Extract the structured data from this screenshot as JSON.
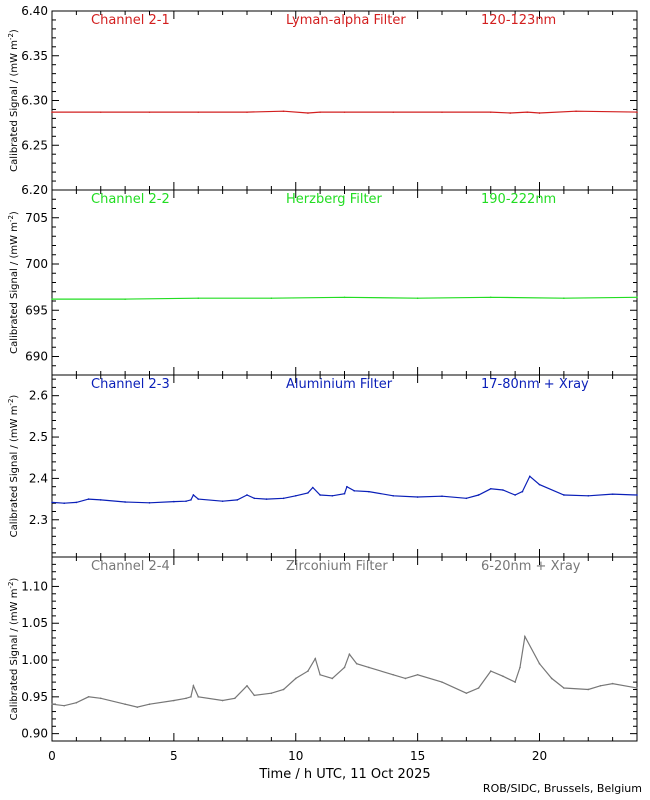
{
  "chart_data": [
    {
      "type": "line",
      "channel": "Channel 2-1",
      "filter": "Lyman-alpha Filter",
      "band": "120-123nm",
      "color": "#d21f1f",
      "ylabel": "Calibrated Signal / (mW m",
      "ylabel_sup": "-2",
      "ylabel_end": ")",
      "ylim": [
        6.2,
        6.4
      ],
      "yticks": [
        "6.20",
        "6.25",
        "6.30",
        "6.35",
        "6.40"
      ],
      "x": [
        0,
        2,
        4,
        6,
        8,
        9.5,
        10.5,
        11,
        12,
        14,
        16,
        18,
        18.8,
        19.5,
        20,
        21.5,
        24
      ],
      "values": [
        6.287,
        6.287,
        6.287,
        6.287,
        6.287,
        6.288,
        6.286,
        6.287,
        6.287,
        6.287,
        6.287,
        6.287,
        6.286,
        6.287,
        6.286,
        6.288,
        6.287
      ]
    },
    {
      "type": "line",
      "channel": "Channel 2-2",
      "filter": "Herzberg Filter",
      "band": "190-222nm",
      "color": "#22dd22",
      "ylabel": "Calibrated Signal / (mW m",
      "ylabel_sup": "-2",
      "ylabel_end": ")",
      "ylim": [
        688,
        708
      ],
      "yticks": [
        "690",
        "695",
        "700",
        "705"
      ],
      "x": [
        0,
        3,
        6,
        9,
        12,
        15,
        18,
        21,
        24
      ],
      "values": [
        696.2,
        696.2,
        696.3,
        696.3,
        696.4,
        696.3,
        696.4,
        696.3,
        696.4
      ]
    },
    {
      "type": "line",
      "channel": "Channel 2-3",
      "filter": "Aluminium Filter",
      "band": "17-80nm + Xray",
      "color": "#0a1fb8",
      "ylabel": "Calibrated Signal / (mW m",
      "ylabel_sup": "-2",
      "ylabel_end": ")",
      "ylim": [
        2.21,
        2.65
      ],
      "yticks": [
        "2.3",
        "2.4",
        "2.5",
        "2.6"
      ],
      "x": [
        0,
        0.5,
        1,
        1.5,
        2,
        3,
        4,
        5,
        5.5,
        5.7,
        5.8,
        6,
        7,
        7.6,
        8,
        8.3,
        8.8,
        9.5,
        10,
        10.5,
        10.7,
        11,
        11.5,
        12,
        12.1,
        12.4,
        13,
        14,
        15,
        16,
        17,
        17.5,
        18,
        18.5,
        19,
        19.3,
        19.6,
        20,
        21,
        22,
        23,
        24
      ],
      "values": [
        2.342,
        2.34,
        2.342,
        2.35,
        2.348,
        2.343,
        2.341,
        2.344,
        2.345,
        2.348,
        2.36,
        2.35,
        2.345,
        2.348,
        2.36,
        2.352,
        2.35,
        2.352,
        2.358,
        2.365,
        2.378,
        2.36,
        2.358,
        2.363,
        2.38,
        2.37,
        2.368,
        2.358,
        2.355,
        2.357,
        2.352,
        2.36,
        2.375,
        2.372,
        2.36,
        2.368,
        2.405,
        2.385,
        2.36,
        2.358,
        2.362,
        2.36
      ]
    },
    {
      "type": "line",
      "channel": "Channel 2-4",
      "filter": "Zirconium Filter",
      "band": "6-20nm + Xray",
      "color": "#777777",
      "ylabel": "Calibrated Signal / (mW m",
      "ylabel_sup": "-2",
      "ylabel_end": ")",
      "ylim": [
        0.89,
        1.14
      ],
      "yticks": [
        "0.90",
        "0.95",
        "1.00",
        "1.05",
        "1.10"
      ],
      "x": [
        0,
        0.5,
        1,
        1.5,
        2,
        3,
        3.5,
        4,
        5,
        5.5,
        5.7,
        5.8,
        6,
        7,
        7.5,
        8,
        8.3,
        9,
        9.5,
        10,
        10.5,
        10.8,
        11,
        11.5,
        12,
        12.2,
        12.5,
        13,
        14,
        14.5,
        15,
        16,
        17,
        17.5,
        18,
        18.5,
        19,
        19.2,
        19.4,
        20,
        20.5,
        21,
        22,
        22.5,
        23,
        24
      ],
      "values": [
        0.94,
        0.938,
        0.942,
        0.95,
        0.948,
        0.94,
        0.936,
        0.94,
        0.945,
        0.948,
        0.95,
        0.965,
        0.95,
        0.945,
        0.948,
        0.965,
        0.952,
        0.955,
        0.96,
        0.975,
        0.985,
        1.002,
        0.98,
        0.975,
        0.99,
        1.008,
        0.995,
        0.99,
        0.98,
        0.975,
        0.98,
        0.97,
        0.955,
        0.962,
        0.985,
        0.978,
        0.97,
        0.99,
        1.032,
        0.995,
        0.975,
        0.962,
        0.96,
        0.965,
        0.968,
        0.962
      ]
    }
  ],
  "xaxis": {
    "xlim": [
      0,
      24
    ],
    "ticks": [
      "0",
      "5",
      "10",
      "15",
      "20"
    ],
    "label": "Time / h UTC, 11 Oct 2025"
  },
  "credit": "ROB/SIDC, Brussels, Belgium"
}
